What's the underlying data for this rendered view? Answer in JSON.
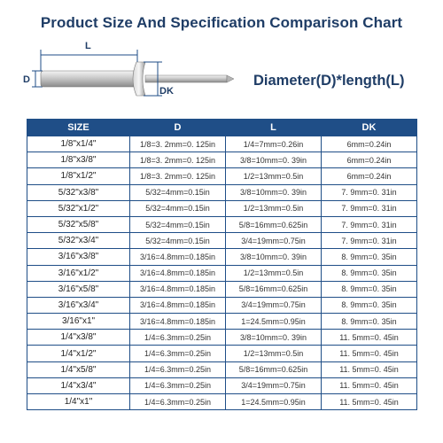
{
  "title": "Product Size And Specification Comparison Chart",
  "diagram": {
    "label_l": "L",
    "label_d": "D",
    "label_dk": "DK"
  },
  "formula": "Diameter(D)*length(L)",
  "table": {
    "headers": [
      "SIZE",
      "D",
      "L",
      "DK"
    ],
    "rows": [
      [
        "1/8\"x1/4\"",
        "1/8=3. 2mm=0. 125in",
        "1/4=7mm=0.26in",
        "6mm=0.24in"
      ],
      [
        "1/8\"x3/8\"",
        "1/8=3. 2mm=0. 125in",
        "3/8=10mm=0. 39in",
        "6mm=0.24in"
      ],
      [
        "1/8\"x1/2\"",
        "1/8=3. 2mm=0. 125in",
        "1/2=13mm=0.5in",
        "6mm=0.24in"
      ],
      [
        "5/32\"x3/8\"",
        "5/32=4mm=0.15in",
        "3/8=10mm=0. 39in",
        "7. 9mm=0. 31in"
      ],
      [
        "5/32\"x1/2\"",
        "5/32=4mm=0.15in",
        "1/2=13mm=0.5in",
        "7. 9mm=0. 31in"
      ],
      [
        "5/32\"x5/8\"",
        "5/32=4mm=0.15in",
        "5/8=16mm=0.625in",
        "7. 9mm=0. 31in"
      ],
      [
        "5/32\"x3/4\"",
        "5/32=4mm=0.15in",
        "3/4=19mm=0.75in",
        "7. 9mm=0. 31in"
      ],
      [
        "3/16\"x3/8\"",
        "3/16=4.8mm=0.185in",
        "3/8=10mm=0. 39in",
        "8. 9mm=0. 35in"
      ],
      [
        "3/16\"x1/2\"",
        "3/16=4.8mm=0.185in",
        "1/2=13mm=0.5in",
        "8. 9mm=0. 35in"
      ],
      [
        "3/16\"x5/8\"",
        "3/16=4.8mm=0.185in",
        "5/8=16mm=0.625in",
        "8. 9mm=0. 35in"
      ],
      [
        "3/16\"x3/4\"",
        "3/16=4.8mm=0.185in",
        "3/4=19mm=0.75in",
        "8. 9mm=0. 35in"
      ],
      [
        "3/16\"x1\"",
        "3/16=4.8mm=0.185in",
        "1=24.5mm=0.95in",
        "8. 9mm=0. 35in"
      ],
      [
        "1/4\"x3/8\"",
        "1/4=6.3mm=0.25in",
        "3/8=10mm=0. 39in",
        "11. 5mm=0. 45in"
      ],
      [
        "1/4\"x1/2\"",
        "1/4=6.3mm=0.25in",
        "1/2=13mm=0.5in",
        "11. 5mm=0. 45in"
      ],
      [
        "1/4\"x5/8\"",
        "1/4=6.3mm=0.25in",
        "5/8=16mm=0.625in",
        "11. 5mm=0. 45in"
      ],
      [
        "1/4\"x3/4\"",
        "1/4=6.3mm=0.25in",
        "3/4=19mm=0.75in",
        "11. 5mm=0. 45in"
      ],
      [
        "1/4\"x1\"",
        "1/4=6.3mm=0.25in",
        "1=24.5mm=0.95in",
        "11. 5mm=0. 45in"
      ]
    ]
  }
}
